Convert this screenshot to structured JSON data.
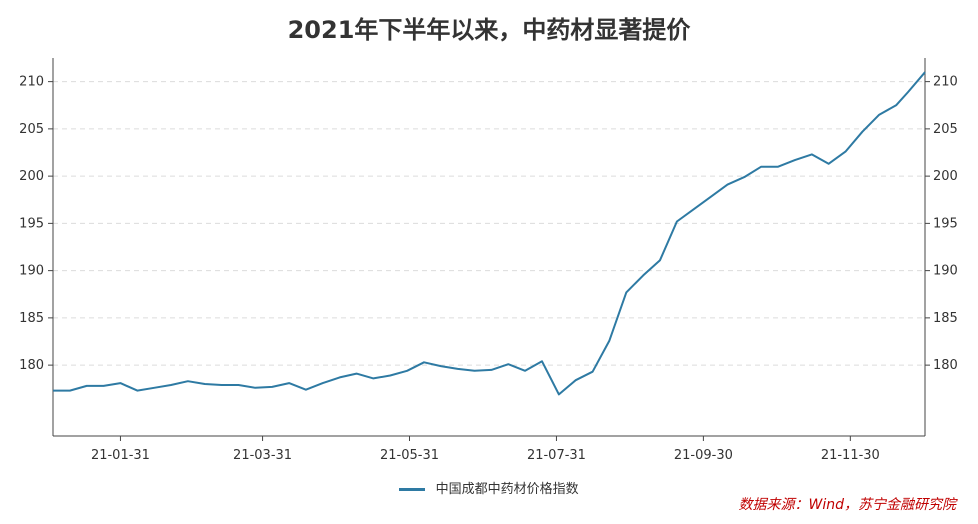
{
  "title": "2021年下半年以来，中药材显著提价",
  "source": "数据来源：Wind，苏宁金融研究院",
  "colors": {
    "line": "#2e7aa3",
    "grid": "#dcdcdc",
    "axis": "#444444",
    "source": "#c00000"
  },
  "chart_data": {
    "type": "line",
    "title": "2021年下半年以来，中药材显著提价",
    "xlabel": "",
    "ylabel": "",
    "ylim": [
      172.5,
      212.5
    ],
    "yticks": [
      180,
      185,
      190,
      195,
      200,
      205,
      210
    ],
    "xlim": [
      "2021-01-03",
      "2021-12-31"
    ],
    "xticks": [
      "21-01-31",
      "21-03-31",
      "21-05-31",
      "21-07-31",
      "21-09-30",
      "21-11-30"
    ],
    "grid": "horizontal dashed",
    "secondary_y_axis": true,
    "legend_position": "bottom",
    "series": [
      {
        "name": "中国成都中药材价格指数",
        "x": [
          "2021-01-03",
          "2021-01-10",
          "2021-01-17",
          "2021-01-24",
          "2021-01-31",
          "2021-02-07",
          "2021-02-14",
          "2021-02-21",
          "2021-02-28",
          "2021-03-07",
          "2021-03-14",
          "2021-03-21",
          "2021-03-28",
          "2021-04-04",
          "2021-04-11",
          "2021-04-18",
          "2021-04-25",
          "2021-05-02",
          "2021-05-09",
          "2021-05-16",
          "2021-05-23",
          "2021-05-30",
          "2021-06-06",
          "2021-06-13",
          "2021-06-20",
          "2021-06-27",
          "2021-07-04",
          "2021-07-11",
          "2021-07-18",
          "2021-07-25",
          "2021-08-01",
          "2021-08-08",
          "2021-08-15",
          "2021-08-22",
          "2021-08-29",
          "2021-09-05",
          "2021-09-12",
          "2021-09-19",
          "2021-09-26",
          "2021-10-03",
          "2021-10-10",
          "2021-10-17",
          "2021-10-24",
          "2021-10-31",
          "2021-11-07",
          "2021-11-14",
          "2021-11-21",
          "2021-11-28",
          "2021-12-05",
          "2021-12-12",
          "2021-12-19",
          "2021-12-24",
          "2021-12-31"
        ],
        "values": [
          177.3,
          177.3,
          177.8,
          177.8,
          178.1,
          177.3,
          177.6,
          177.9,
          178.3,
          178.0,
          177.9,
          177.9,
          177.6,
          177.7,
          178.1,
          177.4,
          178.1,
          178.7,
          179.1,
          178.6,
          178.9,
          179.4,
          180.3,
          179.9,
          179.6,
          179.4,
          179.5,
          180.1,
          179.4,
          180.4,
          176.9,
          178.4,
          179.3,
          182.6,
          187.7,
          189.5,
          191.1,
          195.2,
          196.5,
          197.8,
          199.1,
          199.9,
          201.0,
          201.0,
          201.7,
          202.3,
          201.3,
          202.6,
          204.7,
          206.5,
          207.5,
          208.9,
          211.0
        ]
      }
    ]
  }
}
